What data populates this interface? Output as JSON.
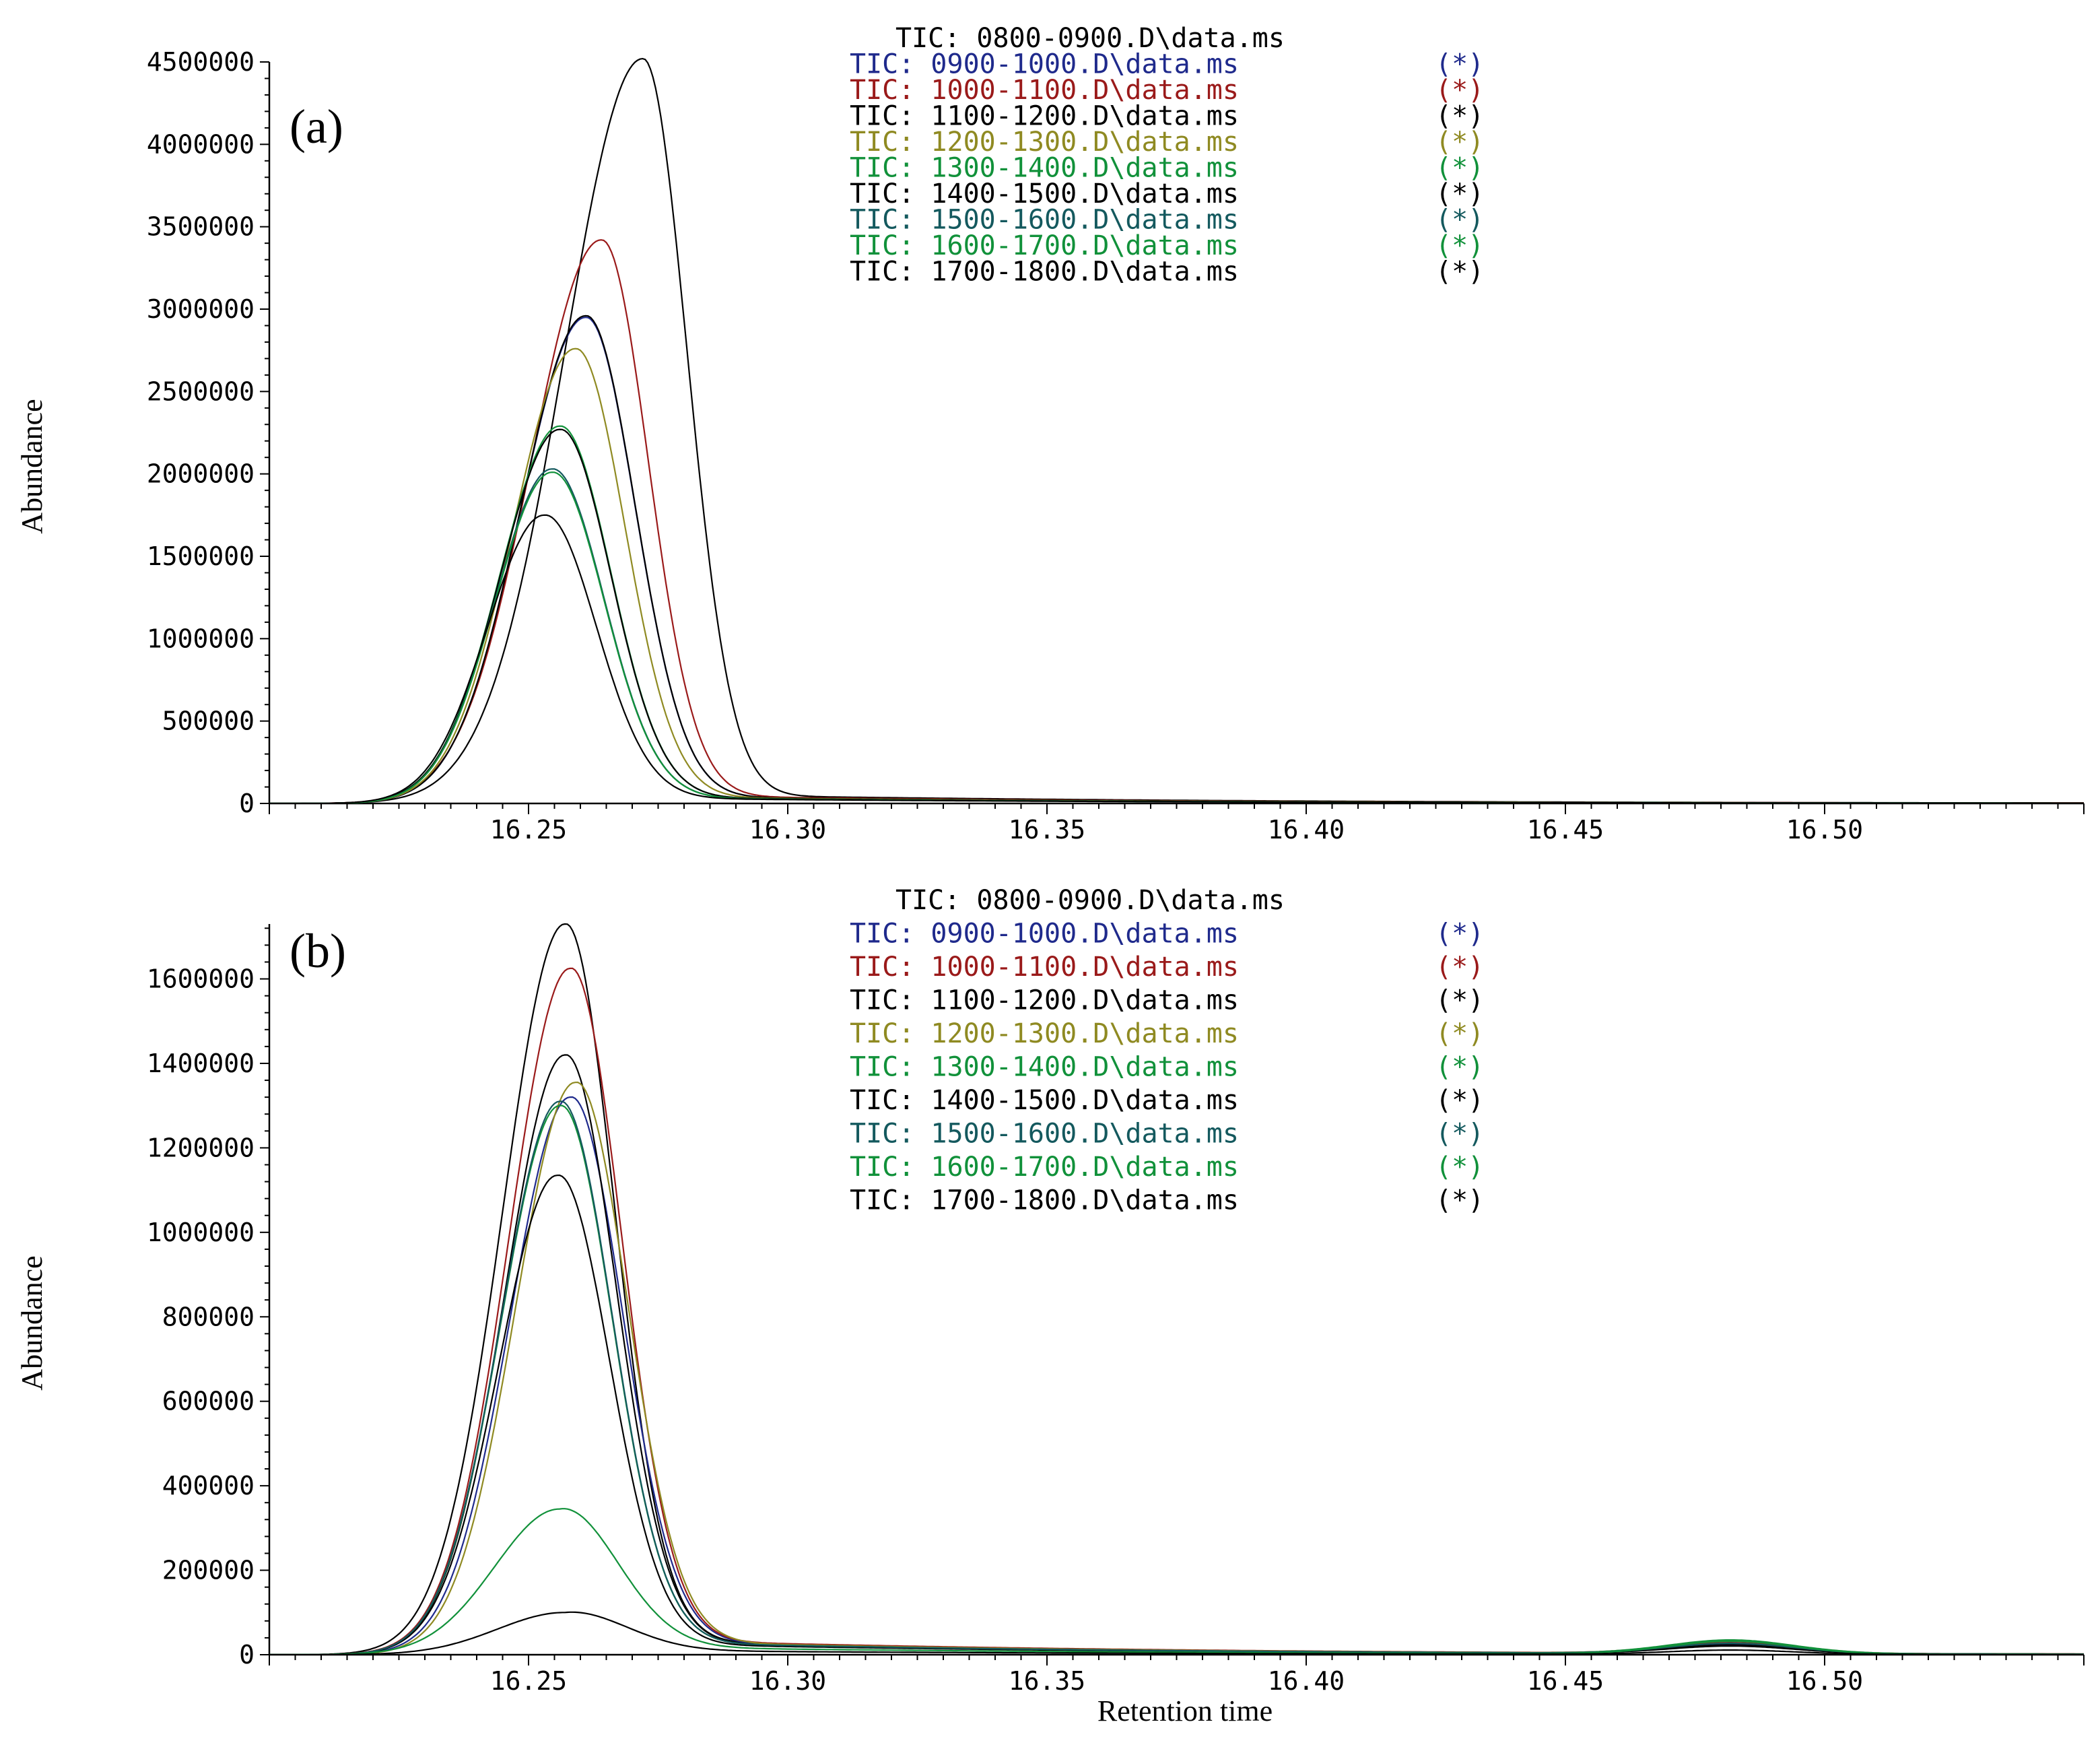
{
  "chart_data": [
    {
      "type": "line",
      "panel_label": "(a)",
      "xlabel": "",
      "ylabel": "Abundance",
      "xlim": [
        16.2,
        16.55
      ],
      "ylim": [
        0,
        4500000
      ],
      "x_ticks": [
        16.25,
        16.3,
        16.35,
        16.4,
        16.45,
        16.5
      ],
      "x_tick_labels": [
        "16.25",
        "16.30",
        "16.35",
        "16.40",
        "16.45",
        "16.50"
      ],
      "y_ticks": [
        0,
        500000,
        1000000,
        1500000,
        2000000,
        2500000,
        3000000,
        3500000,
        4000000,
        4500000
      ],
      "y_tick_labels": [
        "0",
        "500000",
        "1000000",
        "1500000",
        "2000000",
        "2500000",
        "3000000",
        "3500000",
        "4000000",
        "4500000"
      ],
      "legend": [
        {
          "label": "TIC: 0800-0900.D\\data.ms",
          "marker": "",
          "color": "#000000"
        },
        {
          "label": "TIC: 0900-1000.D\\data.ms",
          "marker": "(*)",
          "color": "#1f2a8c"
        },
        {
          "label": "TIC: 1000-1100.D\\data.ms",
          "marker": "(*)",
          "color": "#9a1a1a"
        },
        {
          "label": "TIC: 1100-1200.D\\data.ms",
          "marker": "(*)",
          "color": "#000000"
        },
        {
          "label": "TIC: 1200-1300.D\\data.ms",
          "marker": "(*)",
          "color": "#8f8a22"
        },
        {
          "label": "TIC: 1300-1400.D\\data.ms",
          "marker": "(*)",
          "color": "#11913a"
        },
        {
          "label": "TIC: 1400-1500.D\\data.ms",
          "marker": "(*)",
          "color": "#000000"
        },
        {
          "label": "TIC: 1500-1600.D\\data.ms",
          "marker": "(*)",
          "color": "#14595e"
        },
        {
          "label": "TIC: 1600-1700.D\\data.ms",
          "marker": "(*)",
          "color": "#11913a"
        },
        {
          "label": "TIC: 1700-1800.D\\data.ms",
          "marker": "(*)",
          "color": "#000000"
        }
      ],
      "series": [
        {
          "name": "0800-0900",
          "color": "#000000",
          "peak_x": 16.272,
          "peak_y": 4520000,
          "width_left": 0.015,
          "width_right": 0.0085,
          "tail": 60000
        },
        {
          "name": "0900-1000",
          "color": "#1f2a8c",
          "peak_x": 16.261,
          "peak_y": 2950000,
          "width_left": 0.0125,
          "width_right": 0.0095,
          "tail": 50000
        },
        {
          "name": "1000-1100",
          "color": "#9a1a1a",
          "peak_x": 16.264,
          "peak_y": 3420000,
          "width_left": 0.0135,
          "width_right": 0.009,
          "tail": 55000
        },
        {
          "name": "1100-1200",
          "color": "#000000",
          "peak_x": 16.261,
          "peak_y": 2960000,
          "width_left": 0.0125,
          "width_right": 0.0095,
          "tail": 50000
        },
        {
          "name": "1200-1300",
          "color": "#8f8a22",
          "peak_x": 16.259,
          "peak_y": 2760000,
          "width_left": 0.012,
          "width_right": 0.0095,
          "tail": 48000
        },
        {
          "name": "1300-1400",
          "color": "#11913a",
          "peak_x": 16.256,
          "peak_y": 2290000,
          "width_left": 0.0115,
          "width_right": 0.0098,
          "tail": 45000
        },
        {
          "name": "1400-1500",
          "color": "#000000",
          "peak_x": 16.256,
          "peak_y": 2270000,
          "width_left": 0.0115,
          "width_right": 0.0098,
          "tail": 45000
        },
        {
          "name": "1500-1600",
          "color": "#14595e",
          "peak_x": 16.2545,
          "peak_y": 2030000,
          "width_left": 0.011,
          "width_right": 0.01,
          "tail": 42000
        },
        {
          "name": "1600-1700",
          "color": "#11913a",
          "peak_x": 16.2545,
          "peak_y": 2010000,
          "width_left": 0.011,
          "width_right": 0.01,
          "tail": 42000
        },
        {
          "name": "1700-1800",
          "color": "#000000",
          "peak_x": 16.253,
          "peak_y": 1750000,
          "width_left": 0.011,
          "width_right": 0.01,
          "tail": 40000
        }
      ]
    },
    {
      "type": "line",
      "panel_label": "(b)",
      "xlabel": "Retention time",
      "ylabel": "Abundance",
      "xlim": [
        16.2,
        16.55
      ],
      "ylim": [
        0,
        1730000
      ],
      "x_ticks": [
        16.25,
        16.3,
        16.35,
        16.4,
        16.45,
        16.5
      ],
      "x_tick_labels": [
        "16.25",
        "16.30",
        "16.35",
        "16.40",
        "16.45",
        "16.50"
      ],
      "y_ticks": [
        0,
        200000,
        400000,
        600000,
        800000,
        1000000,
        1200000,
        1400000,
        1600000
      ],
      "y_tick_labels": [
        "0",
        "200000",
        "400000",
        "600000",
        "800000",
        "1000000",
        "1200000",
        "1400000",
        "1600000"
      ],
      "legend": [
        {
          "label": "TIC: 0800-0900.D\\data.ms",
          "marker": "",
          "color": "#000000"
        },
        {
          "label": "TIC: 0900-1000.D\\data.ms",
          "marker": "(*)",
          "color": "#1f2a8c"
        },
        {
          "label": "TIC: 1000-1100.D\\data.ms",
          "marker": "(*)",
          "color": "#9a1a1a"
        },
        {
          "label": "TIC: 1100-1200.D\\data.ms",
          "marker": "(*)",
          "color": "#000000"
        },
        {
          "label": "TIC: 1200-1300.D\\data.ms",
          "marker": "(*)",
          "color": "#8f8a22"
        },
        {
          "label": "TIC: 1300-1400.D\\data.ms",
          "marker": "(*)",
          "color": "#11913a"
        },
        {
          "label": "TIC: 1400-1500.D\\data.ms",
          "marker": "(*)",
          "color": "#000000"
        },
        {
          "label": "TIC: 1500-1600.D\\data.ms",
          "marker": "(*)",
          "color": "#14595e"
        },
        {
          "label": "TIC: 1600-1700.D\\data.ms",
          "marker": "(*)",
          "color": "#11913a"
        },
        {
          "label": "TIC: 1700-1800.D\\data.ms",
          "marker": "(*)",
          "color": "#000000"
        }
      ],
      "series": [
        {
          "name": "0800-0900",
          "color": "#000000",
          "peak_x": 16.257,
          "peak_y": 1730000,
          "width_left": 0.012,
          "width_right": 0.0095,
          "tail": 40000,
          "bump": 18000
        },
        {
          "name": "0900-1000",
          "color": "#1f2a8c",
          "peak_x": 16.258,
          "peak_y": 1320000,
          "width_left": 0.0115,
          "width_right": 0.01,
          "tail": 38000,
          "bump": 22000
        },
        {
          "name": "1000-1100",
          "color": "#9a1a1a",
          "peak_x": 16.258,
          "peak_y": 1625000,
          "width_left": 0.0118,
          "width_right": 0.0098,
          "tail": 42000,
          "bump": 25000
        },
        {
          "name": "1100-1200",
          "color": "#000000",
          "peak_x": 16.257,
          "peak_y": 1420000,
          "width_left": 0.0115,
          "width_right": 0.0098,
          "tail": 36000,
          "bump": 20000
        },
        {
          "name": "1200-1300",
          "color": "#8f8a22",
          "peak_x": 16.259,
          "peak_y": 1355000,
          "width_left": 0.0115,
          "width_right": 0.01,
          "tail": 38000,
          "bump": 30000
        },
        {
          "name": "1300-1400",
          "color": "#11913a",
          "peak_x": 16.256,
          "peak_y": 1300000,
          "width_left": 0.0113,
          "width_right": 0.01,
          "tail": 36000,
          "bump": 32000
        },
        {
          "name": "1400-1500",
          "color": "#000000",
          "peak_x": 16.2555,
          "peak_y": 1135000,
          "width_left": 0.0112,
          "width_right": 0.01,
          "tail": 32000,
          "bump": 18000
        },
        {
          "name": "1500-1600",
          "color": "#14595e",
          "peak_x": 16.256,
          "peak_y": 1310000,
          "width_left": 0.0113,
          "width_right": 0.01,
          "tail": 36000,
          "bump": 24000
        },
        {
          "name": "1600-1700",
          "color": "#11913a",
          "peak_x": 16.256,
          "peak_y": 345000,
          "width_left": 0.0125,
          "width_right": 0.011,
          "tail": 22000,
          "bump": 30000
        },
        {
          "name": "1700-1800",
          "color": "#000000",
          "peak_x": 16.257,
          "peak_y": 100000,
          "width_left": 0.013,
          "width_right": 0.0115,
          "tail": 12000,
          "bump": 10000
        }
      ]
    }
  ]
}
